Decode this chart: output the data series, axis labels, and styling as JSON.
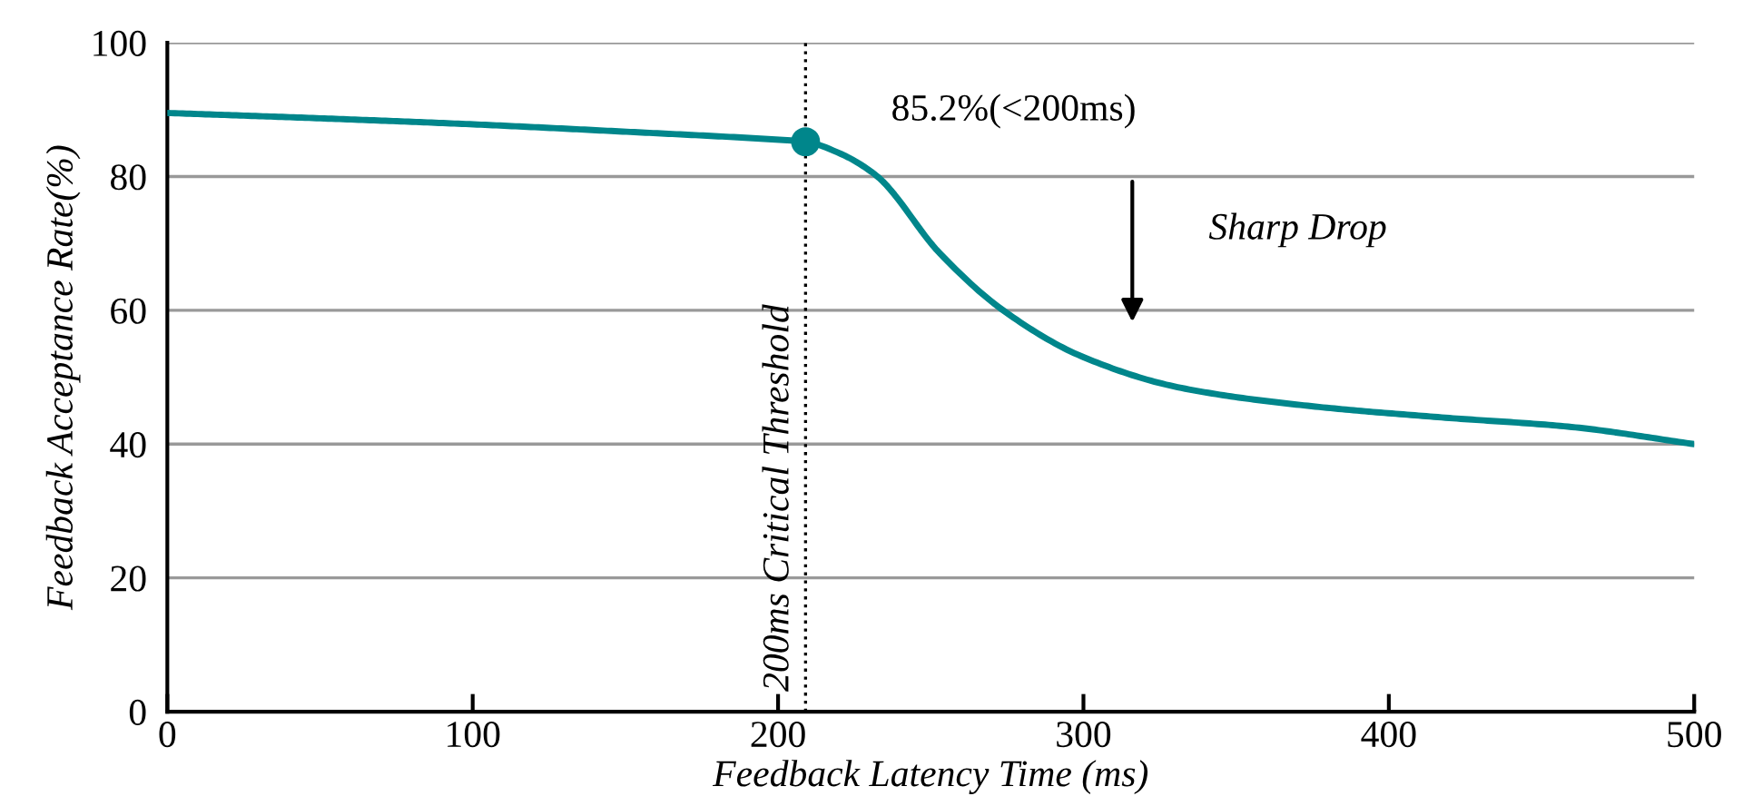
{
  "chart_data": {
    "type": "line",
    "xlabel": "Feedback Latency Time (ms)",
    "ylabel": "Feedback Acceptance Rate(%)",
    "series": [
      {
        "color": "#00868b",
        "x": [
          0,
          50,
          100,
          150,
          200,
          209,
          220,
          232,
          253,
          274,
          300,
          332,
          374,
          417,
          459,
          500
        ],
        "values": [
          89.5,
          88.7,
          87.8,
          86.7,
          85.5,
          85.2,
          83.5,
          80.2,
          68.5,
          59.9,
          53,
          48.4,
          45.7,
          44,
          42.6,
          40
        ],
        "marker": "none"
      },
      {
        "type": "scatter",
        "color": "#00868b",
        "x": [
          209
        ],
        "values": [
          85.2
        ],
        "marker": "circle"
      }
    ],
    "xlim": [
      0,
      500
    ],
    "xticks": [
      0,
      100,
      200,
      300,
      400,
      500
    ],
    "ylim": [
      0,
      100
    ],
    "yticks": [
      0,
      20,
      40,
      60,
      80,
      100
    ],
    "grid": "y",
    "legend": false,
    "ref_lines": [
      {
        "axis": "x",
        "value": 209,
        "label": "200ms Critical Threshold",
        "color": "#000000",
        "line_style": "dotted"
      }
    ],
    "annotations": [
      {
        "text": "85.2%(<200ms)",
        "x": 209,
        "y": 85.2
      },
      "Sharp Drop"
    ]
  }
}
